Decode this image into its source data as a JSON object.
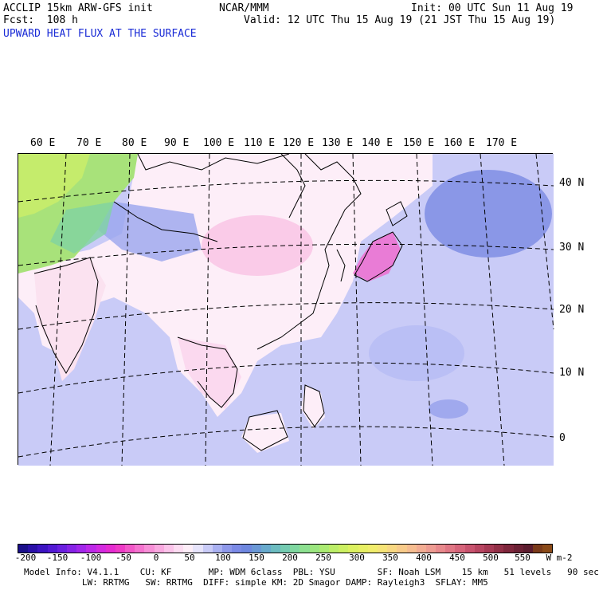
{
  "header": {
    "model_line": "ACCLIP 15km ARW-GFS init",
    "fcst_line": "Fcst:  108 h",
    "center": "NCAR/MMM",
    "init_line": "Init: 00 UTC Sun 11 Aug 19",
    "valid_line": "Valid: 12 UTC Thu 15 Aug 19 (21 JST Thu 15 Aug 19)",
    "field_title": "UPWARD HEAT FLUX AT THE SURFACE"
  },
  "map": {
    "lon_labels": [
      "60 E",
      "70 E",
      "80 E",
      "90 E",
      "100 E",
      "110 E",
      "120 E",
      "130 E",
      "140 E",
      "150 E",
      "160 E",
      "170 E"
    ],
    "lat_labels": [
      "40 N",
      "30 N",
      "20 N",
      "10 N",
      "0"
    ]
  },
  "colorbar": {
    "labels": [
      "-200",
      "-150",
      "-100",
      "-50",
      "0",
      "50",
      "100",
      "150",
      "200",
      "250",
      "300",
      "350",
      "400",
      "450",
      "500",
      "550"
    ],
    "unit": "W m-2",
    "colors": [
      "#1a0f8a",
      "#2a10a8",
      "#3c14c2",
      "#5219d4",
      "#6a1fe0",
      "#8623e6",
      "#a126ea",
      "#bd28e8",
      "#d42ae0",
      "#e52bd1",
      "#ee3ac6",
      "#f257c8",
      "#f573cf",
      "#f78fd7",
      "#f9a9e0",
      "#fbc3ea",
      "#fcdcf2",
      "#fdeef8",
      "#e7e4fb",
      "#c9cbf7",
      "#a9b0f1",
      "#8e98ea",
      "#7b8ae6",
      "#6e87df",
      "#6a98d6",
      "#68aacd",
      "#6cbcc0",
      "#74cbb1",
      "#7fd7a0",
      "#8de090",
      "#9be67f",
      "#abeb72",
      "#bcee68",
      "#ccf062",
      "#dcf160",
      "#e8f064",
      "#f1ed6c",
      "#f6e477",
      "#f8d882",
      "#f8cb8a",
      "#f6bd90",
      "#f3ad93",
      "#ee9c92",
      "#e8898c",
      "#e07684",
      "#d6647a",
      "#c8536e",
      "#b84561",
      "#a63954",
      "#922f47",
      "#7e263c",
      "#6b2034",
      "#5b1c2e",
      "#7a3a1a",
      "#8a4a18"
    ]
  },
  "footer": {
    "line1": "Model Info: V4.1.1    CU: KF       MP: WDM 6class  PBL: YSU        SF: Noah LSM    15 km   51 levels   90 sec",
    "line2": "           LW: RRTMG   SW: RRTMG  DIFF: simple KM: 2D Smagor DAMP: Rayleigh3  SFLAY: MM5"
  }
}
